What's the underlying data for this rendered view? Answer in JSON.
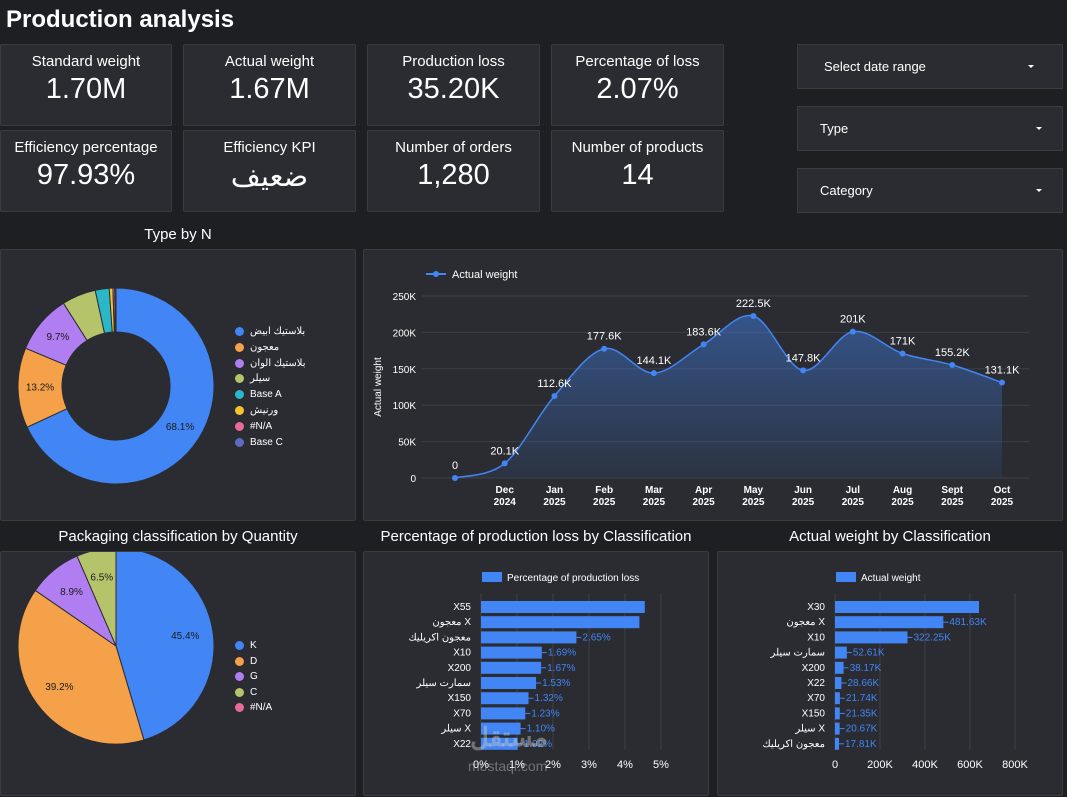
{
  "page_title": "Production analysis",
  "kpis": [
    {
      "label": "Standard weight",
      "value": "1.70M"
    },
    {
      "label": "Actual weight",
      "value": "1.67M"
    },
    {
      "label": "Production loss",
      "value": "35.20K"
    },
    {
      "label": "Percentage of loss",
      "value": "2.07%"
    },
    {
      "label": "Efficiency percentage",
      "value": "97.93%"
    },
    {
      "label": "Efficiency KPI",
      "value": "ضعيف"
    },
    {
      "label": "Number of orders",
      "value": "1,280"
    },
    {
      "label": "Number of products",
      "value": "14"
    }
  ],
  "filters": {
    "date_range": "Select date range",
    "type": "Type",
    "category": "Category"
  },
  "colors": {
    "blue": "#4285f4",
    "orange": "#f4a14a",
    "purple": "#b07ef0",
    "green": "#b5c46a",
    "teal": "#2ab8c8",
    "yellow": "#f4c430",
    "pink": "#e86a9a",
    "slate": "#5c6bc0"
  },
  "chart_data": [
    {
      "type": "pie",
      "title": "Type by N",
      "donut": true,
      "slices": [
        {
          "name": "بلاستيك ابيض",
          "value": 68.1,
          "label": "68.1%",
          "color": "#4285f4"
        },
        {
          "name": "معجون",
          "value": 13.2,
          "label": "13.2%",
          "color": "#f4a14a"
        },
        {
          "name": "بلاستيك الوان",
          "value": 9.7,
          "label": "9.7%",
          "color": "#b07ef0"
        },
        {
          "name": "سيلر",
          "value": 5.6,
          "label": "",
          "color": "#b5c46a"
        },
        {
          "name": "Base A",
          "value": 2.3,
          "label": "",
          "color": "#2ab8c8"
        },
        {
          "name": "ورنيش",
          "value": 0.6,
          "label": "",
          "color": "#f4c430"
        },
        {
          "name": "#N/A",
          "value": 0.3,
          "label": "",
          "color": "#e86a9a"
        },
        {
          "name": "Base C",
          "value": 0.2,
          "label": "",
          "color": "#5c6bc0"
        }
      ]
    },
    {
      "type": "area",
      "legend": "Actual weight",
      "ylabel": "Actual weight",
      "ylim": [
        0,
        250000
      ],
      "yticks": [
        "0",
        "50K",
        "100K",
        "150K",
        "200K",
        "250K"
      ],
      "x": [
        [
          "",
          ""
        ],
        [
          "Dec",
          "2024"
        ],
        [
          "Jan",
          "2025"
        ],
        [
          "Feb",
          "2025"
        ],
        [
          "Mar",
          "2025"
        ],
        [
          "Apr",
          "2025"
        ],
        [
          "May",
          "2025"
        ],
        [
          "Jun",
          "2025"
        ],
        [
          "Jul",
          "2025"
        ],
        [
          "Aug",
          "2025"
        ],
        [
          "Sept",
          "2025"
        ],
        [
          "Oct",
          "2025"
        ]
      ],
      "values": [
        0,
        20100,
        112600,
        177600,
        144100,
        183600,
        222500,
        147800,
        201000,
        171000,
        155200,
        131100
      ],
      "labels": [
        "0",
        "20.1K",
        "112.6K",
        "177.6K",
        "144.1K",
        "183.6K",
        "222.5K",
        "147.8K",
        "201K",
        "171K",
        "155.2K",
        "131.1K"
      ]
    },
    {
      "type": "pie",
      "title": "Packaging classification by Quantity",
      "slices": [
        {
          "name": "K",
          "value": 45.4,
          "label": "45.4%",
          "color": "#4285f4"
        },
        {
          "name": "D",
          "value": 39.2,
          "label": "39.2%",
          "color": "#f4a14a"
        },
        {
          "name": "G",
          "value": 8.9,
          "label": "8.9%",
          "color": "#b07ef0"
        },
        {
          "name": "C",
          "value": 6.5,
          "label": "6.5%",
          "color": "#b5c46a"
        },
        {
          "name": "#N/A",
          "value": 0,
          "label": "",
          "color": "#e86a9a"
        }
      ]
    },
    {
      "type": "bar",
      "title": "Percentage of production loss by Classification",
      "legend": "Percentage of production loss",
      "categories": [
        "X55",
        "معجون X",
        "معجون اكريليك",
        "X10",
        "X200",
        "سمارت سيلر",
        "X150",
        "X70",
        "سيلر X",
        "X22"
      ],
      "values": [
        4.55,
        4.4,
        2.65,
        1.69,
        1.67,
        1.53,
        1.32,
        1.23,
        1.1,
        1.02
      ],
      "labels": [
        "",
        "",
        "2.65%",
        "1.69%",
        "1.67%",
        "1.53%",
        "1.32%",
        "1.23%",
        "1.10%",
        "1.02%"
      ],
      "xlim": [
        0,
        5
      ],
      "xticks": [
        "0%",
        "1%",
        "2%",
        "3%",
        "4%",
        "5%"
      ]
    },
    {
      "type": "bar",
      "title": "Actual weight by Classification",
      "legend": "Actual weight",
      "categories": [
        "X30",
        "معجون X",
        "X10",
        "سمارت سيلر",
        "X200",
        "X22",
        "X70",
        "X150",
        "سيلر X",
        "معجون اكريليك"
      ],
      "values": [
        640000,
        481630,
        322250,
        52610,
        38170,
        28660,
        21740,
        21350,
        20670,
        17810
      ],
      "labels": [
        "",
        "481.63K",
        "322.25K",
        "52.61K",
        "38.17K",
        "28.66K",
        "21.74K",
        "21.35K",
        "20.67K",
        "17.81K"
      ],
      "xlim": [
        0,
        800000
      ],
      "xticks": [
        "0",
        "200K",
        "400K",
        "600K",
        "800K"
      ]
    }
  ],
  "watermark": {
    "brand": "مستقل",
    "url": "mostaql.com"
  }
}
